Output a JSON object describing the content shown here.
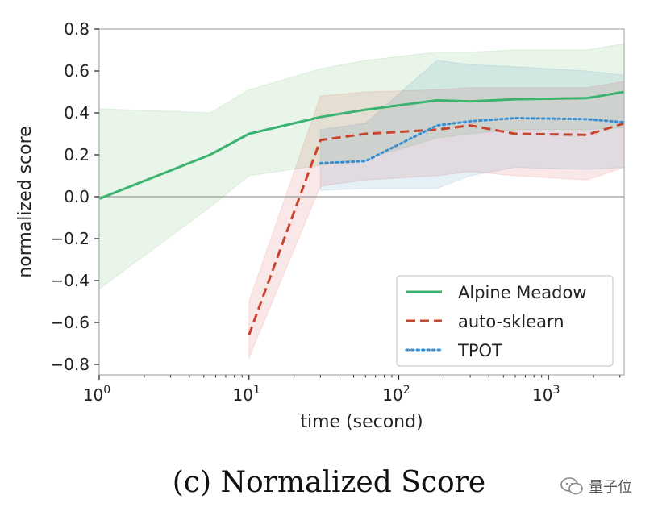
{
  "caption": "(c)  Normalized Score",
  "watermark": "量子位",
  "chart_data": {
    "type": "line",
    "xlabel": "time (second)",
    "ylabel": "normalized score",
    "xscale": "log",
    "xlim": [
      1,
      3200
    ],
    "ylim": [
      -0.85,
      0.8
    ],
    "xticks": [
      1,
      10,
      100,
      1000
    ],
    "xtick_labels": [
      {
        "base": "10",
        "exp": "0"
      },
      {
        "base": "10",
        "exp": "1"
      },
      {
        "base": "10",
        "exp": "2"
      },
      {
        "base": "10",
        "exp": "3"
      }
    ],
    "yticks": [
      -0.8,
      -0.6,
      -0.4,
      -0.2,
      0.0,
      0.2,
      0.4,
      0.6,
      0.8
    ],
    "ytick_labels": [
      "−0.8",
      "−0.6",
      "−0.4",
      "−0.2",
      "0.0",
      "0.2",
      "0.4",
      "0.6",
      "0.8"
    ],
    "grid": false,
    "zero_line": true,
    "legend_position": "lower-right",
    "series": [
      {
        "name": "Alpine Meadow",
        "color": "#2ca02c",
        "line_color": "#3cb371",
        "style": "solid",
        "x": [
          1,
          5.5,
          10,
          30,
          60,
          180,
          300,
          600,
          1800,
          3200
        ],
        "y": [
          -0.01,
          0.2,
          0.3,
          0.38,
          0.415,
          0.46,
          0.455,
          0.465,
          0.47,
          0.5
        ],
        "lower": [
          -0.44,
          -0.05,
          0.1,
          0.15,
          0.18,
          0.28,
          0.3,
          0.32,
          0.32,
          0.33
        ],
        "upper": [
          0.42,
          0.4,
          0.51,
          0.61,
          0.65,
          0.69,
          0.69,
          0.7,
          0.7,
          0.73
        ]
      },
      {
        "name": "auto-sklearn",
        "color": "#d62728",
        "line_color": "#c8442c",
        "style": "dashed",
        "x": [
          10,
          30,
          60,
          180,
          300,
          600,
          1800,
          3200
        ],
        "y": [
          -0.66,
          0.27,
          0.3,
          0.32,
          0.34,
          0.3,
          0.295,
          0.35
        ],
        "lower": [
          -0.77,
          0.05,
          0.08,
          0.1,
          0.12,
          0.1,
          0.08,
          0.14
        ],
        "upper": [
          -0.5,
          0.48,
          0.5,
          0.51,
          0.52,
          0.52,
          0.52,
          0.55
        ]
      },
      {
        "name": "TPOT",
        "color": "#1f77b4",
        "line_color": "#3a8fd0",
        "style": "dotted",
        "x": [
          30,
          60,
          180,
          300,
          600,
          1800,
          3200
        ],
        "y": [
          0.16,
          0.17,
          0.34,
          0.36,
          0.375,
          0.37,
          0.355
        ],
        "lower": [
          0.03,
          0.04,
          0.04,
          0.1,
          0.14,
          0.13,
          0.14
        ],
        "upper": [
          0.32,
          0.35,
          0.65,
          0.63,
          0.62,
          0.6,
          0.58
        ]
      }
    ]
  }
}
